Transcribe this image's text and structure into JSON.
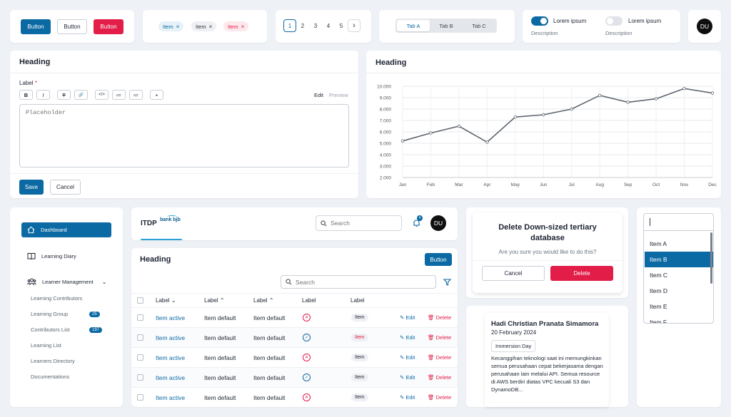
{
  "buttons": {
    "primary": "Button",
    "outline": "Button",
    "danger": "Button"
  },
  "chips": [
    {
      "label": "Item",
      "x": "×"
    },
    {
      "label": "Item",
      "x": "×"
    },
    {
      "label": "Item",
      "x": "×"
    }
  ],
  "pagination": {
    "pages": [
      "1",
      "2",
      "3",
      "4",
      "5"
    ],
    "next": "›"
  },
  "tabs": [
    "Tab A",
    "Tab B",
    "Tab C"
  ],
  "toggles": [
    {
      "label": "Lorem ipsum",
      "description": "Description",
      "state": "on"
    },
    {
      "label": "Lorem ipsum",
      "description": "Description",
      "state": "off"
    }
  ],
  "avatar_initials": "DU",
  "editor": {
    "heading": "Heading",
    "label": "Label",
    "required": "*",
    "toolbar": {
      "bold": "B",
      "italic": "I",
      "strike": "T",
      "link": "🔗",
      "code": "</>",
      "ul": "≔",
      "ol": "≔",
      "image": "▪"
    },
    "mode_edit": "Edit",
    "mode_preview": "Preview",
    "placeholder": "Placeholder",
    "save": "Save",
    "cancel": "Cancel"
  },
  "chart_heading": "Heading",
  "chart_data": {
    "type": "line",
    "title": "Heading",
    "categories": [
      "Jan",
      "Feb",
      "Mar",
      "Apr",
      "May",
      "Jun",
      "Jul",
      "Aug",
      "Sep",
      "Oct",
      "Nov",
      "Dec"
    ],
    "values": [
      5200,
      5900,
      6500,
      5100,
      7300,
      7500,
      8000,
      9200,
      8600,
      8900,
      9800,
      9400
    ],
    "ylim": [
      2000,
      10000
    ],
    "yticks": [
      "2.000",
      "3.000",
      "4.000",
      "5.000",
      "6.000",
      "7.000",
      "8.000",
      "9.000",
      "10.000"
    ],
    "xlabel": "",
    "ylabel": "",
    "grid": true
  },
  "sidebar": {
    "items": [
      {
        "label": "Dashboard",
        "icon": "home-icon"
      },
      {
        "label": "Learning Diary",
        "icon": "book-icon"
      },
      {
        "label": "Learner Management",
        "icon": "users-icon"
      }
    ],
    "subitems": [
      {
        "label": "Learning Contributors",
        "badge": ""
      },
      {
        "label": "Learning Group",
        "badge": "25"
      },
      {
        "label": "Contributors List",
        "badge": "197"
      },
      {
        "label": "Learning List",
        "badge": ""
      },
      {
        "label": "Learners Directory",
        "badge": ""
      },
      {
        "label": "Documentations",
        "badge": ""
      }
    ]
  },
  "topbar": {
    "brand": "ITDP",
    "bank": "bank bjb",
    "search_placeholder": "Search",
    "notif_count": "4",
    "avatar": "DU"
  },
  "table": {
    "heading": "Heading",
    "button": "Button",
    "search_placeholder": "Search",
    "columns": [
      "Label",
      "Label",
      "Label",
      "Label",
      "Label"
    ],
    "col_sort": [
      "⌄",
      "⌃",
      "⌃",
      "",
      ""
    ],
    "rows": [
      {
        "c1": "Item active",
        "c2": "Item default",
        "c3": "Item default",
        "status": "x",
        "tag": "Item",
        "tag_red": false
      },
      {
        "c1": "Item active",
        "c2": "Item default",
        "c3": "Item default",
        "status": "ok",
        "tag": "Item",
        "tag_red": true
      },
      {
        "c1": "Item active",
        "c2": "Item default",
        "c3": "Item default",
        "status": "x",
        "tag": "Item",
        "tag_red": false
      },
      {
        "c1": "Item active",
        "c2": "Item default",
        "c3": "Item default",
        "status": "ok",
        "tag": "Item",
        "tag_red": false
      },
      {
        "c1": "Item active",
        "c2": "Item default",
        "c3": "Item default",
        "status": "x",
        "tag": "Item",
        "tag_red": false
      }
    ],
    "edit": "Edit",
    "delete": "Delete"
  },
  "dialog": {
    "title": "Delete Down-sized tertiary database",
    "message": "Are you sure you would like to do this?",
    "cancel": "Cancel",
    "confirm": "Delete"
  },
  "post": {
    "author": "Hadi Christian Pranata Simamora",
    "date": "20 February 2024",
    "tag": "Immersion Day",
    "body": "Kecanggihan teknologi saat ini memungkinkan semua perusahaan cepat bekerjasama dengan perusahaan lain melalui API. Semua resource di AWS berdiri diatas VPC kecuali S3 dan DynamoDB..."
  },
  "listbox": {
    "items": [
      "Item A",
      "Item B",
      "Item C",
      "Item D",
      "Item E",
      "Item F"
    ],
    "selected": 1
  },
  "colors": {
    "primary": "#0b69a3",
    "danger": "#e11d48"
  }
}
